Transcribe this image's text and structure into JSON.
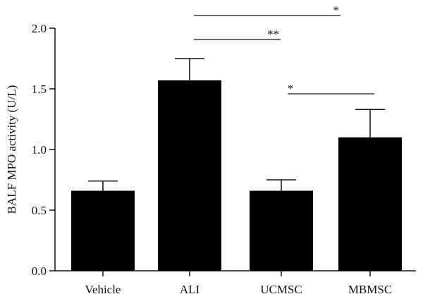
{
  "chart_data": {
    "type": "bar",
    "title": "",
    "xlabel": "",
    "ylabel": "BALF MPO activity (U/L)",
    "categories": [
      "Vehicle",
      "ALI",
      "UCMSC",
      "MBMSC"
    ],
    "values": [
      0.66,
      1.57,
      0.66,
      1.1
    ],
    "error": [
      0.08,
      0.18,
      0.09,
      0.23
    ],
    "ylim": [
      0,
      2.0
    ],
    "yticks": [
      "0.0",
      "0.5",
      "1.0",
      "1.5",
      "2.0"
    ],
    "grid": false,
    "bar_color": "#000000",
    "significance": [
      {
        "from": "ALI",
        "to": "MBMSC",
        "label": "*"
      },
      {
        "from": "ALI",
        "to": "UCMSC",
        "label": "**"
      },
      {
        "from": "UCMSC",
        "to": "MBMSC",
        "label": "*"
      }
    ]
  }
}
